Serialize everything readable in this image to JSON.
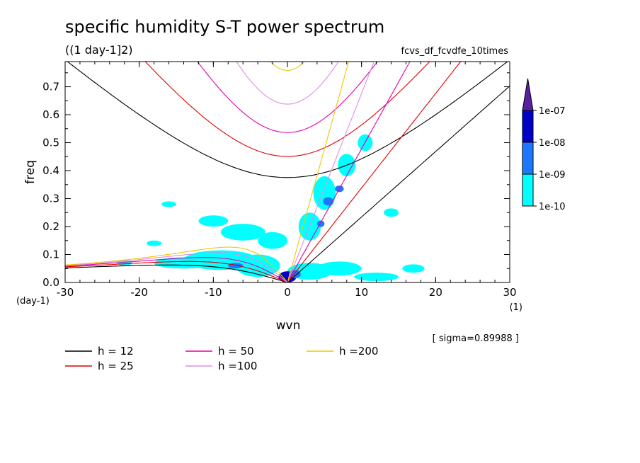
{
  "chart_data": {
    "type": "heatmap",
    "title": "specific humidity S-T power spectrum",
    "subtitle": "((1 day-1]2)",
    "run_label": "fcvs_df_fcvdfe_10times",
    "xlabel": "wvn",
    "ylabel": "freq",
    "x_unit": "(1)",
    "y_unit": "(day-1)",
    "xlim": [
      -30,
      30
    ],
    "ylim": [
      0,
      0.79
    ],
    "x_ticks": [
      -30,
      -20,
      -10,
      0,
      10,
      20,
      30
    ],
    "y_ticks": [
      0.0,
      0.1,
      0.2,
      0.3,
      0.4,
      0.5,
      0.6,
      0.7
    ],
    "x_tick_labels": [
      "-30",
      "-20",
      "-10",
      "0",
      "10",
      "20",
      "30"
    ],
    "y_tick_labels": [
      "0.0",
      "0.1",
      "0.2",
      "0.3",
      "0.4",
      "0.5",
      "0.6",
      "0.7"
    ],
    "sigma_note": "[ sigma=0.89988 ]",
    "colorbar": {
      "levels": [
        "1e-10",
        "1e-09",
        "1e-08",
        "1e-07"
      ],
      "colors": [
        "#00ffff",
        "#1e78ff",
        "#0000c8",
        "#5a1ea0"
      ]
    },
    "dispersion_legend": [
      {
        "label": "h = 12",
        "color": "#000000"
      },
      {
        "label": "h = 25",
        "color": "#e00000"
      },
      {
        "label": "h = 50",
        "color": "#e000b0"
      },
      {
        "label": "h =100",
        "color": "#e08ee0"
      },
      {
        "label": "h =200",
        "color": "#f0c800"
      }
    ],
    "equivalent_depths": [
      12,
      25,
      50,
      100,
      200
    ],
    "power_regions": [
      {
        "x": -9,
        "y": 0.08,
        "rx": 5,
        "ry": 0.035,
        "level": 0
      },
      {
        "x": -14,
        "y": 0.07,
        "rx": 4,
        "ry": 0.02,
        "level": 0
      },
      {
        "x": -4,
        "y": 0.06,
        "rx": 3,
        "ry": 0.04,
        "level": 0
      },
      {
        "x": 3,
        "y": 0.04,
        "rx": 3,
        "ry": 0.03,
        "level": 0
      },
      {
        "x": 7,
        "y": 0.05,
        "rx": 3,
        "ry": 0.025,
        "level": 0
      },
      {
        "x": 12,
        "y": 0.02,
        "rx": 3,
        "ry": 0.015,
        "level": 0
      },
      {
        "x": -6,
        "y": 0.18,
        "rx": 3,
        "ry": 0.03,
        "level": 0
      },
      {
        "x": -2,
        "y": 0.15,
        "rx": 2,
        "ry": 0.03,
        "level": 0
      },
      {
        "x": -10,
        "y": 0.22,
        "rx": 2,
        "ry": 0.02,
        "level": 0
      },
      {
        "x": 3,
        "y": 0.2,
        "rx": 1.5,
        "ry": 0.05,
        "level": 0
      },
      {
        "x": 5,
        "y": 0.32,
        "rx": 1.5,
        "ry": 0.06,
        "level": 0
      },
      {
        "x": 8,
        "y": 0.42,
        "rx": 1.2,
        "ry": 0.04,
        "level": 0
      },
      {
        "x": 10.5,
        "y": 0.5,
        "rx": 1,
        "ry": 0.03,
        "level": 0
      },
      {
        "x": 0,
        "y": 0.02,
        "rx": 1.2,
        "ry": 0.02,
        "level": 2
      },
      {
        "x": 1,
        "y": 0.03,
        "rx": 0.8,
        "ry": 0.015,
        "level": 1
      },
      {
        "x": 5.5,
        "y": 0.29,
        "rx": 0.7,
        "ry": 0.015,
        "level": 1
      },
      {
        "x": 7,
        "y": 0.335,
        "rx": 0.6,
        "ry": 0.012,
        "level": 1
      },
      {
        "x": 4.5,
        "y": 0.21,
        "rx": 0.5,
        "ry": 0.012,
        "level": 1
      },
      {
        "x": -7,
        "y": 0.06,
        "rx": 1,
        "ry": 0.01,
        "level": 1
      },
      {
        "x": -22,
        "y": 0.07,
        "rx": 1,
        "ry": 0.01,
        "level": 0
      },
      {
        "x": -18,
        "y": 0.14,
        "rx": 1,
        "ry": 0.01,
        "level": 0
      },
      {
        "x": -16,
        "y": 0.28,
        "rx": 1,
        "ry": 0.01,
        "level": 0
      },
      {
        "x": 14,
        "y": 0.25,
        "rx": 1,
        "ry": 0.015,
        "level": 0
      },
      {
        "x": 17,
        "y": 0.05,
        "rx": 1.5,
        "ry": 0.015,
        "level": 0
      }
    ]
  }
}
